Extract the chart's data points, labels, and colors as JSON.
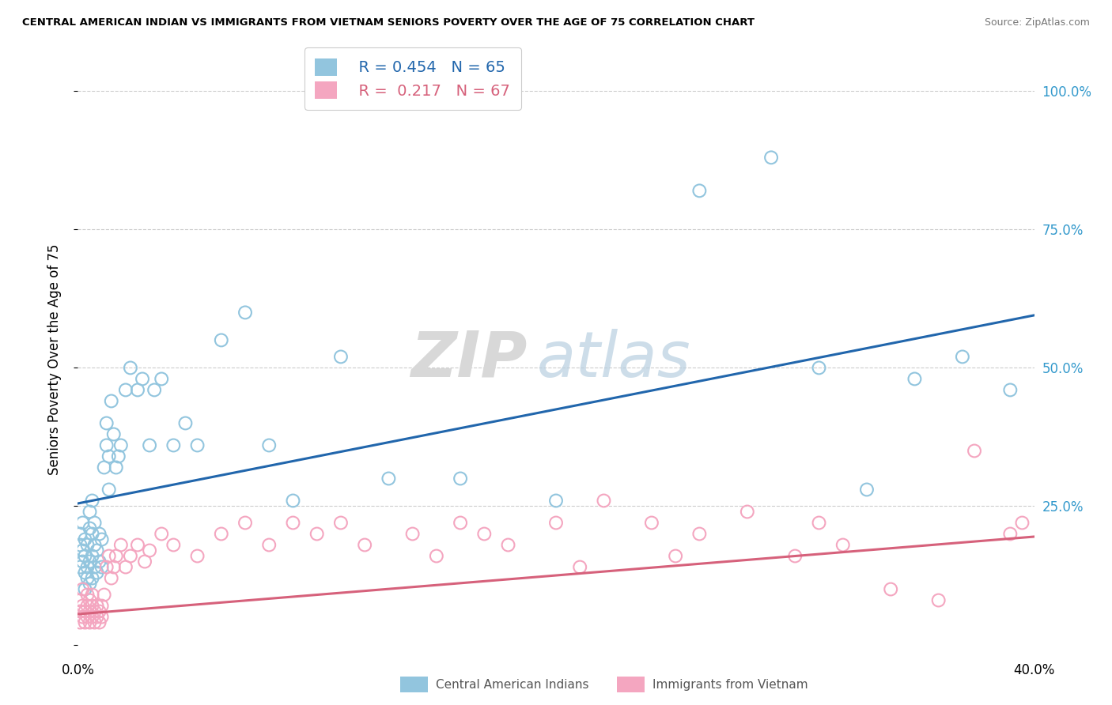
{
  "title": "CENTRAL AMERICAN INDIAN VS IMMIGRANTS FROM VIETNAM SENIORS POVERTY OVER THE AGE OF 75 CORRELATION CHART",
  "source": "Source: ZipAtlas.com",
  "ylabel": "Seniors Poverty Over the Age of 75",
  "xlim": [
    0.0,
    0.4
  ],
  "ylim": [
    -0.02,
    1.05
  ],
  "watermark_zip": "ZIP",
  "watermark_atlas": "atlas",
  "legend_r1": "R = 0.454",
  "legend_n1": "N = 65",
  "legend_r2": "R =  0.217",
  "legend_n2": "N = 67",
  "blue_color": "#92c5de",
  "pink_color": "#f4a6c0",
  "line_blue": "#2166ac",
  "line_pink": "#d6617b",
  "legend_label1": "Central American Indians",
  "legend_label2": "Immigrants from Vietnam",
  "blue_line_x": [
    0.0,
    0.4
  ],
  "blue_line_y": [
    0.255,
    0.595
  ],
  "pink_line_x": [
    0.0,
    0.4
  ],
  "pink_line_y": [
    0.055,
    0.195
  ],
  "blue_x": [
    0.001,
    0.001,
    0.001,
    0.002,
    0.002,
    0.002,
    0.003,
    0.003,
    0.003,
    0.003,
    0.004,
    0.004,
    0.004,
    0.005,
    0.005,
    0.005,
    0.005,
    0.006,
    0.006,
    0.006,
    0.006,
    0.007,
    0.007,
    0.007,
    0.008,
    0.008,
    0.009,
    0.009,
    0.01,
    0.01,
    0.011,
    0.012,
    0.012,
    0.013,
    0.013,
    0.014,
    0.015,
    0.016,
    0.017,
    0.018,
    0.02,
    0.022,
    0.025,
    0.027,
    0.03,
    0.032,
    0.035,
    0.04,
    0.045,
    0.05,
    0.06,
    0.07,
    0.08,
    0.09,
    0.11,
    0.13,
    0.16,
    0.2,
    0.26,
    0.29,
    0.31,
    0.33,
    0.35,
    0.37,
    0.39
  ],
  "blue_y": [
    0.14,
    0.18,
    0.2,
    0.15,
    0.17,
    0.22,
    0.1,
    0.13,
    0.16,
    0.19,
    0.12,
    0.14,
    0.18,
    0.11,
    0.15,
    0.21,
    0.24,
    0.12,
    0.16,
    0.2,
    0.26,
    0.14,
    0.18,
    0.22,
    0.13,
    0.17,
    0.15,
    0.2,
    0.14,
    0.19,
    0.32,
    0.36,
    0.4,
    0.28,
    0.34,
    0.44,
    0.38,
    0.32,
    0.34,
    0.36,
    0.46,
    0.5,
    0.46,
    0.48,
    0.36,
    0.46,
    0.48,
    0.36,
    0.4,
    0.36,
    0.55,
    0.6,
    0.36,
    0.26,
    0.52,
    0.3,
    0.3,
    0.26,
    0.82,
    0.88,
    0.5,
    0.28,
    0.48,
    0.52,
    0.46
  ],
  "pink_x": [
    0.001,
    0.001,
    0.001,
    0.002,
    0.002,
    0.002,
    0.003,
    0.003,
    0.004,
    0.004,
    0.004,
    0.005,
    0.005,
    0.005,
    0.006,
    0.006,
    0.006,
    0.007,
    0.007,
    0.008,
    0.008,
    0.009,
    0.009,
    0.01,
    0.01,
    0.011,
    0.012,
    0.013,
    0.014,
    0.015,
    0.016,
    0.018,
    0.02,
    0.022,
    0.025,
    0.028,
    0.03,
    0.035,
    0.04,
    0.05,
    0.06,
    0.07,
    0.08,
    0.09,
    0.1,
    0.11,
    0.12,
    0.14,
    0.15,
    0.16,
    0.17,
    0.18,
    0.2,
    0.21,
    0.22,
    0.24,
    0.25,
    0.26,
    0.28,
    0.3,
    0.31,
    0.32,
    0.34,
    0.36,
    0.375,
    0.39,
    0.395
  ],
  "pink_y": [
    0.04,
    0.06,
    0.08,
    0.05,
    0.07,
    0.1,
    0.04,
    0.06,
    0.05,
    0.07,
    0.09,
    0.04,
    0.06,
    0.08,
    0.05,
    0.07,
    0.09,
    0.04,
    0.06,
    0.05,
    0.07,
    0.04,
    0.06,
    0.05,
    0.07,
    0.09,
    0.14,
    0.16,
    0.12,
    0.14,
    0.16,
    0.18,
    0.14,
    0.16,
    0.18,
    0.15,
    0.17,
    0.2,
    0.18,
    0.16,
    0.2,
    0.22,
    0.18,
    0.22,
    0.2,
    0.22,
    0.18,
    0.2,
    0.16,
    0.22,
    0.2,
    0.18,
    0.22,
    0.14,
    0.26,
    0.22,
    0.16,
    0.2,
    0.24,
    0.16,
    0.22,
    0.18,
    0.1,
    0.08,
    0.35,
    0.2,
    0.22
  ]
}
